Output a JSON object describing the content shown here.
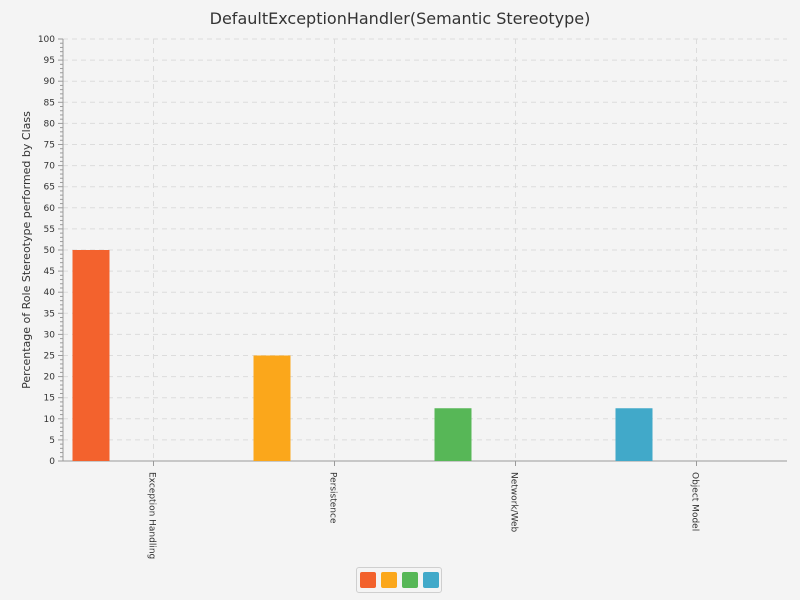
{
  "chart_data": {
    "type": "bar",
    "title": "DefaultExceptionHandler(Semantic Stereotype)",
    "xlabel": "",
    "ylabel": "Percentage of Role Stereotype performed by Class",
    "ylim": [
      0,
      100
    ],
    "yticks": [
      0,
      5,
      10,
      15,
      20,
      25,
      30,
      35,
      40,
      45,
      50,
      55,
      60,
      65,
      70,
      75,
      80,
      85,
      90,
      95,
      100
    ],
    "categories": [
      "Exception Handling",
      "Persistence",
      "Network/Web",
      "Object Model"
    ],
    "values": [
      50,
      25,
      12.5,
      12.5
    ],
    "colors": [
      "#f3622d",
      "#fba71b",
      "#57b757",
      "#41a9c9"
    ],
    "grid": true,
    "legend": {
      "placement": "bottom-center",
      "entries": [
        "",
        "",
        "",
        ""
      ]
    }
  }
}
